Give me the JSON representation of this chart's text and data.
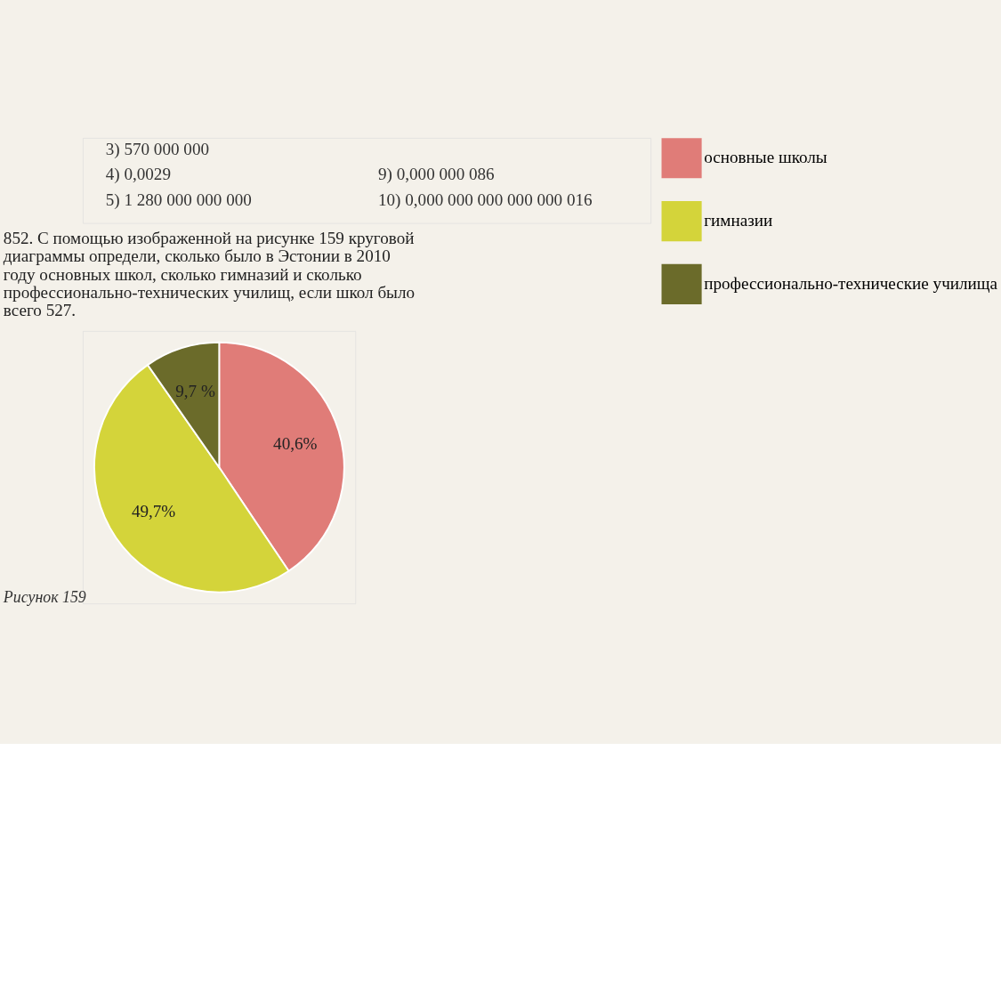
{
  "chart_data": {
    "type": "pie",
    "title": "852. С помощью изображенной на рисунке 159 круговой диаграммы определи, сколько было в Эстонии в 2010 году основных школ, сколько гимназий и сколько профессионально-технических училищ, если школ было всего 527.",
    "categories": [
      "основные школы",
      "гимназии",
      "профессионально-технические училища"
    ],
    "values": [
      40.6,
      49.7,
      9.7
    ],
    "value_labels": [
      "40,6%",
      "49,7%",
      "9,7 %"
    ],
    "colors": [
      "#e07c78",
      "#d4d43a",
      "#6b6b2a"
    ],
    "legend": "right",
    "annotations": [
      "3) 570 000 000",
      "4) 0,0029",
      "5) 1 280 000 000 000",
      "9) 0,000 000 086",
      "10) 0,000 000 000 000 000 016",
      "Рисунок 159"
    ]
  }
}
